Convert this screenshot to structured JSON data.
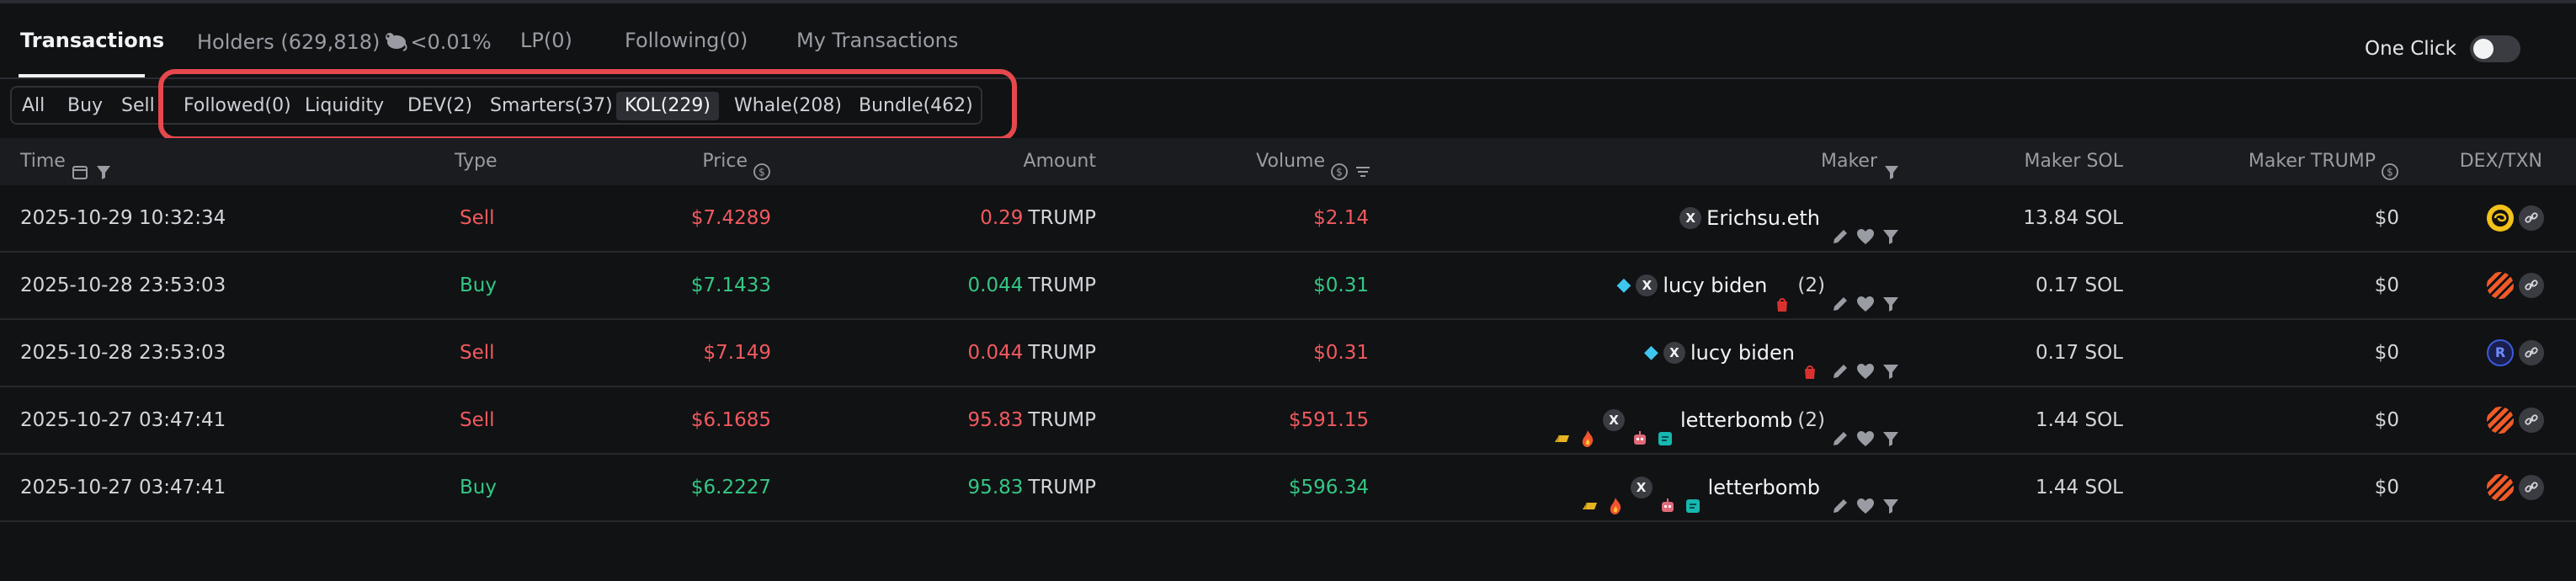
{
  "tabs": [
    {
      "label": "Transactions",
      "active": true
    },
    {
      "label": "Holders (629,818)",
      "suffix": "<0.01%"
    },
    {
      "label": "LP(0)"
    },
    {
      "label": "Following(0)"
    },
    {
      "label": "My Transactions"
    }
  ],
  "one_click": {
    "label": "One Click",
    "enabled": false
  },
  "filters": [
    "All",
    "Buy",
    "Sell",
    "Followed(0)",
    "Liquidity",
    "DEV(2)",
    "Smarters(37)",
    "KOL(229)",
    "Whale(208)",
    "Bundle(462)"
  ],
  "active_filter": "KOL(229)",
  "columns": {
    "time": "Time",
    "type": "Type",
    "price": "Price",
    "amount": "Amount",
    "volume": "Volume",
    "maker": "Maker",
    "maker_sol": "Maker SOL",
    "maker_trump": "Maker TRUMP",
    "dex": "DEX/TXN"
  },
  "rows": [
    {
      "time": "2025-10-29 10:32:34",
      "type": "Sell",
      "price": "$7.4289",
      "amount_num": "0.29",
      "amount_unit": "TRUMP",
      "volume": "$2.14",
      "maker_badges": [
        "x"
      ],
      "maker": "Erichsu.eth",
      "maker_count": "",
      "maker_sol": "13.84 SOL",
      "maker_trump": "$0",
      "dex": "yellow"
    },
    {
      "time": "2025-10-28 23:53:03",
      "type": "Buy",
      "price": "$7.1433",
      "amount_num": "0.044",
      "amount_unit": "TRUMP",
      "volume": "$0.31",
      "maker_badges": [
        "diamond",
        "x"
      ],
      "maker": "lucy biden",
      "maker_tag": "bag",
      "maker_count": "(2)",
      "maker_sol": "0.17 SOL",
      "maker_trump": "$0",
      "dex": "orange"
    },
    {
      "time": "2025-10-28 23:53:03",
      "type": "Sell",
      "price": "$7.149",
      "amount_num": "0.044",
      "amount_unit": "TRUMP",
      "volume": "$0.31",
      "maker_badges": [
        "diamond",
        "x"
      ],
      "maker": "lucy biden",
      "maker_tag": "bag",
      "maker_count": "",
      "maker_sol": "0.17 SOL",
      "maker_trump": "$0",
      "dex": "blue"
    },
    {
      "time": "2025-10-27 03:47:41",
      "type": "Sell",
      "price": "$6.1685",
      "amount_num": "95.83",
      "amount_unit": "TRUMP",
      "volume": "$591.15",
      "maker_badges": [
        "gold",
        "fire",
        "x",
        "robot",
        "cyan"
      ],
      "maker": "letterbomb",
      "maker_count": "(2)",
      "maker_sol": "1.44 SOL",
      "maker_trump": "$0",
      "dex": "orange"
    },
    {
      "time": "2025-10-27 03:47:41",
      "type": "Buy",
      "price": "$6.2227",
      "amount_num": "95.83",
      "amount_unit": "TRUMP",
      "volume": "$596.34",
      "maker_badges": [
        "gold",
        "fire",
        "x",
        "robot",
        "cyan"
      ],
      "maker": "letterbomb",
      "maker_count": "",
      "maker_sol": "1.44 SOL",
      "maker_trump": "$0",
      "dex": "orange"
    }
  ],
  "colors": {
    "buy": "#34c784",
    "sell": "#f05a5f",
    "highlight": "#e5484d"
  }
}
